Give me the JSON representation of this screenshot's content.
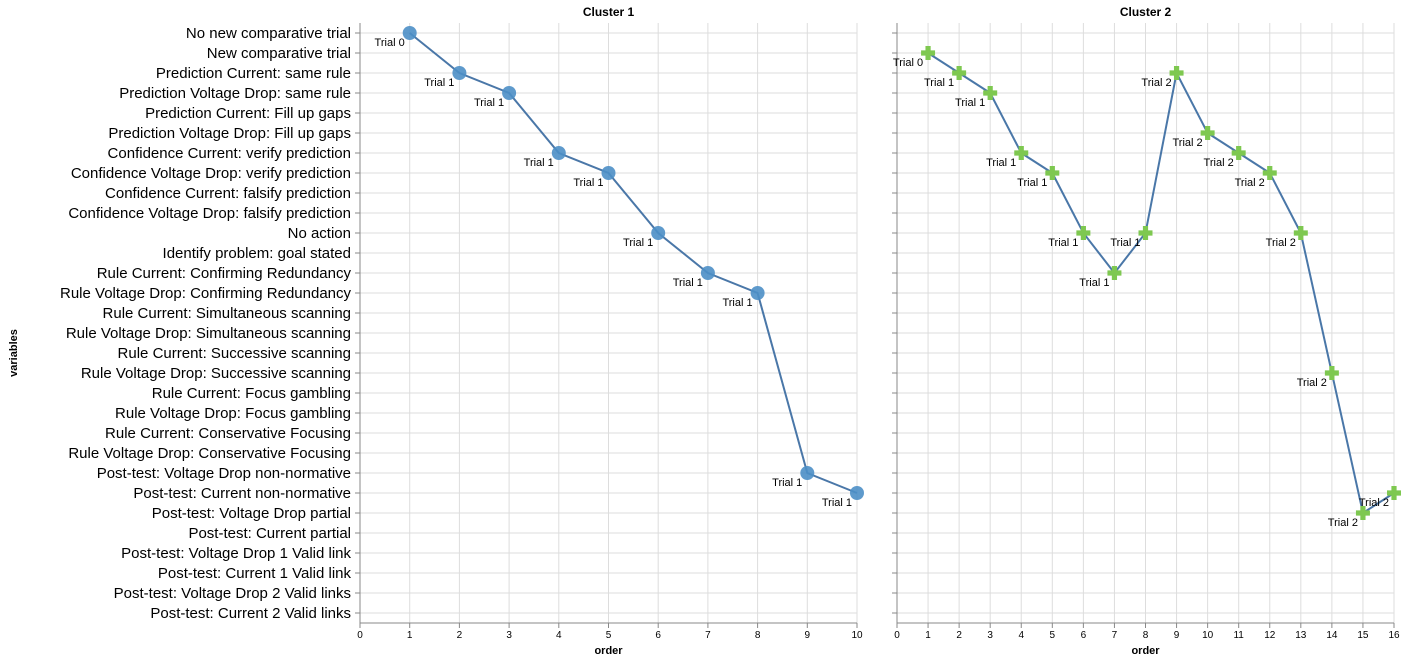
{
  "chart_data": [
    {
      "type": "line",
      "title": "Cluster 1",
      "xlabel": "order",
      "ylabel": "variables",
      "xlim": [
        0,
        10
      ],
      "x_ticks": [
        "0",
        "1",
        "2",
        "3",
        "4",
        "5",
        "6",
        "7",
        "8",
        "9",
        "10"
      ],
      "marker": "circle",
      "marker_color": "#4c8fc7",
      "line_color": "#4a77a8",
      "grid": true,
      "categories": [
        "No new comparative trial",
        "New comparative trial",
        "Prediction Current: same rule",
        "Prediction Voltage Drop: same rule",
        "Prediction Current: Fill up gaps",
        "Prediction Voltage Drop: Fill up gaps",
        "Confidence Current: verify prediction",
        "Confidence Voltage Drop: verify prediction",
        "Confidence Current: falsify prediction",
        "Confidence Voltage Drop: falsify prediction",
        "No action",
        "Identify problem: goal stated",
        "Rule Current: Confirming Redundancy",
        "Rule Voltage Drop: Confirming Redundancy",
        "Rule Current: Simultaneous scanning",
        "Rule Voltage Drop: Simultaneous scanning",
        "Rule Current: Successive scanning",
        "Rule Voltage Drop: Successive scanning",
        "Rule Current: Focus gambling",
        "Rule Voltage Drop: Focus gambling",
        "Rule Current: Conservative Focusing",
        "Rule Voltage Drop: Conservative Focusing",
        "Post-test: Voltage Drop non-normative",
        "Post-test: Current non-normative",
        "Post-test: Voltage Drop partial",
        "Post-test: Current partial",
        "Post-test: Voltage Drop 1 Valid link",
        "Post-test: Current 1 Valid link",
        "Post-test: Voltage Drop 2 Valid links",
        "Post-test: Current 2 Valid links"
      ],
      "points": [
        {
          "x": 1,
          "y": "No new comparative trial",
          "label": "Trial 0"
        },
        {
          "x": 2,
          "y": "Prediction Current: same rule",
          "label": "Trial 1"
        },
        {
          "x": 3,
          "y": "Prediction Voltage Drop: same rule",
          "label": "Trial 1"
        },
        {
          "x": 4,
          "y": "Confidence Current: verify prediction",
          "label": "Trial 1"
        },
        {
          "x": 5,
          "y": "Confidence Voltage Drop: verify prediction",
          "label": "Trial 1"
        },
        {
          "x": 6,
          "y": "No action",
          "label": "Trial 1"
        },
        {
          "x": 7,
          "y": "Rule Current: Confirming Redundancy",
          "label": "Trial 1"
        },
        {
          "x": 8,
          "y": "Rule Voltage Drop: Confirming Redundancy",
          "label": "Trial 1"
        },
        {
          "x": 9,
          "y": "Post-test: Voltage Drop non-normative",
          "label": "Trial 1"
        },
        {
          "x": 10,
          "y": "Post-test: Current non-normative",
          "label": "Trial 1"
        }
      ]
    },
    {
      "type": "line",
      "title": "Cluster 2",
      "xlabel": "order",
      "xlim": [
        0,
        16
      ],
      "x_ticks": [
        "0",
        "1",
        "2",
        "3",
        "4",
        "5",
        "6",
        "7",
        "8",
        "9",
        "10",
        "11",
        "12",
        "13",
        "14",
        "15",
        "16"
      ],
      "marker": "cross",
      "marker_color": "#7ec850",
      "line_color": "#4a77a8",
      "grid": true,
      "points": [
        {
          "x": 1,
          "y": "New comparative trial",
          "label": "Trial 0"
        },
        {
          "x": 2,
          "y": "Prediction Current: same rule",
          "label": "Trial 1"
        },
        {
          "x": 3,
          "y": "Prediction Voltage Drop: same rule",
          "label": "Trial 1"
        },
        {
          "x": 4,
          "y": "Confidence Current: verify prediction",
          "label": "Trial 1"
        },
        {
          "x": 5,
          "y": "Confidence Voltage Drop: verify prediction",
          "label": "Trial 1"
        },
        {
          "x": 6,
          "y": "No action",
          "label": "Trial 1"
        },
        {
          "x": 7,
          "y": "Rule Current: Confirming Redundancy",
          "label": "Trial 1"
        },
        {
          "x": 8,
          "y": "No action",
          "label": "Trial 1"
        },
        {
          "x": 9,
          "y": "Prediction Current: same rule",
          "label": "Trial 2"
        },
        {
          "x": 10,
          "y": "Prediction Voltage Drop: Fill up gaps",
          "label": "Trial 2"
        },
        {
          "x": 11,
          "y": "Confidence Current: verify prediction",
          "label": "Trial 2"
        },
        {
          "x": 12,
          "y": "Confidence Voltage Drop: verify prediction",
          "label": "Trial 2"
        },
        {
          "x": 13,
          "y": "No action",
          "label": "Trial 2"
        },
        {
          "x": 14,
          "y": "Rule Voltage Drop: Successive scanning",
          "label": "Trial 2"
        },
        {
          "x": 15,
          "y": "Post-test: Voltage Drop partial",
          "label": "Trial 2"
        },
        {
          "x": 16,
          "y": "Post-test: Current non-normative",
          "label": "Trial 2"
        }
      ]
    }
  ]
}
